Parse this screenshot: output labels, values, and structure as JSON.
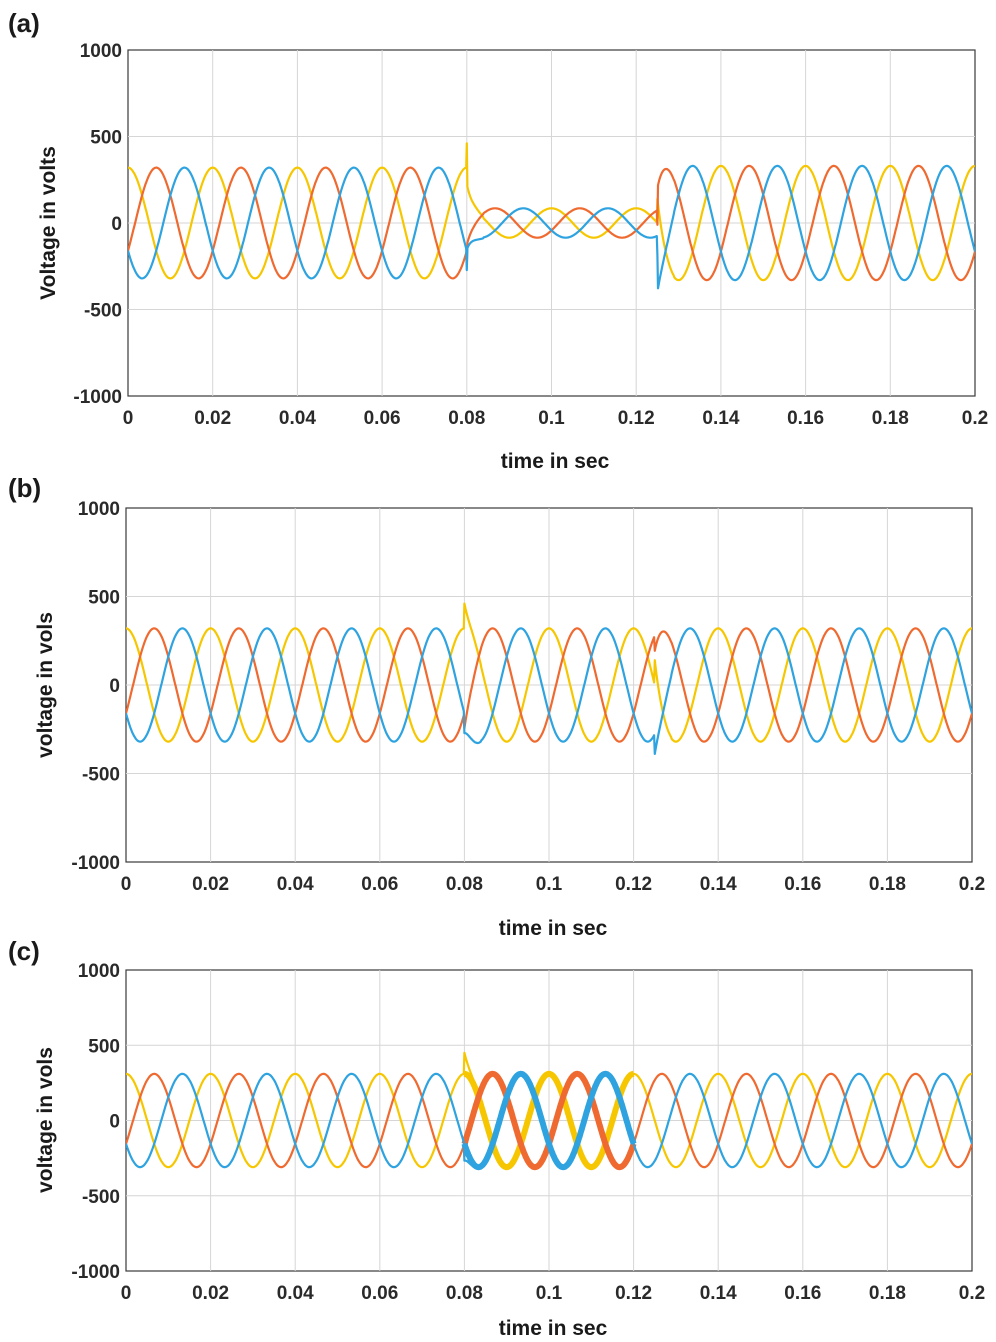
{
  "chart_data": [
    {
      "type": "line",
      "panel_label": "(a)",
      "xlabel": "time in sec",
      "ylabel": "Voltage in volts",
      "xlim": [
        0,
        0.2
      ],
      "ylim": [
        -1000,
        1000
      ],
      "x_ticks": [
        "0",
        "0.02",
        "0.04",
        "0.06",
        "0.08",
        "0.1",
        "0.12",
        "0.14",
        "0.16",
        "0.18",
        "0.2"
      ],
      "y_ticks": [
        "1000",
        "500",
        "0",
        "-500",
        "-1000"
      ],
      "grid": true,
      "frequency_hz": 50,
      "series": [
        {
          "color": "#f6c700",
          "phase_deg": 90
        },
        {
          "color": "#ef6a30",
          "phase_deg": -30
        },
        {
          "color": "#2ea3e0",
          "phase_deg": 210
        }
      ],
      "segments": [
        {
          "t0": 0.0,
          "t1": 0.08,
          "amplitude": 320
        },
        {
          "t0": 0.08,
          "t1": 0.125,
          "amplitude": 85
        },
        {
          "t0": 0.125,
          "t1": 0.2,
          "amplitude": 330
        }
      ],
      "transients": [
        0.08,
        0.125
      ]
    },
    {
      "type": "line",
      "panel_label": "(b)",
      "xlabel": "time in sec",
      "ylabel": "voltage in vols",
      "xlim": [
        0,
        0.2
      ],
      "ylim": [
        -1000,
        1000
      ],
      "x_ticks": [
        "0",
        "0.02",
        "0.04",
        "0.06",
        "0.08",
        "0.1",
        "0.12",
        "0.14",
        "0.16",
        "0.18",
        "0.2"
      ],
      "y_ticks": [
        "1000",
        "500",
        "0",
        "-500",
        "-1000"
      ],
      "grid": true,
      "frequency_hz": 50,
      "series": [
        {
          "color": "#f6c700",
          "phase_deg": 90
        },
        {
          "color": "#ef6a30",
          "phase_deg": -30
        },
        {
          "color": "#2ea3e0",
          "phase_deg": 210
        }
      ],
      "segments": [
        {
          "t0": 0.0,
          "t1": 0.2,
          "amplitude": 320
        }
      ],
      "transients": [
        0.08,
        0.125
      ]
    },
    {
      "type": "line",
      "panel_label": "(c)",
      "xlabel": "time in sec",
      "ylabel": "voltage in vols",
      "xlim": [
        0,
        0.2
      ],
      "ylim": [
        -1000,
        1000
      ],
      "x_ticks": [
        "0",
        "0.02",
        "0.04",
        "0.06",
        "0.08",
        "0.1",
        "0.12",
        "0.14",
        "0.16",
        "0.18",
        "0.2"
      ],
      "y_ticks": [
        "1000",
        "500",
        "0",
        "-500",
        "-1000"
      ],
      "grid": true,
      "frequency_hz": 50,
      "series": [
        {
          "color": "#f6c700",
          "phase_deg": 90
        },
        {
          "color": "#ef6a30",
          "phase_deg": -30
        },
        {
          "color": "#2ea3e0",
          "phase_deg": 210
        }
      ],
      "segments": [
        {
          "t0": 0.0,
          "t1": 0.2,
          "amplitude": 310
        }
      ],
      "thick_interval": [
        0.08,
        0.12
      ],
      "transients": [
        0.08
      ]
    }
  ]
}
